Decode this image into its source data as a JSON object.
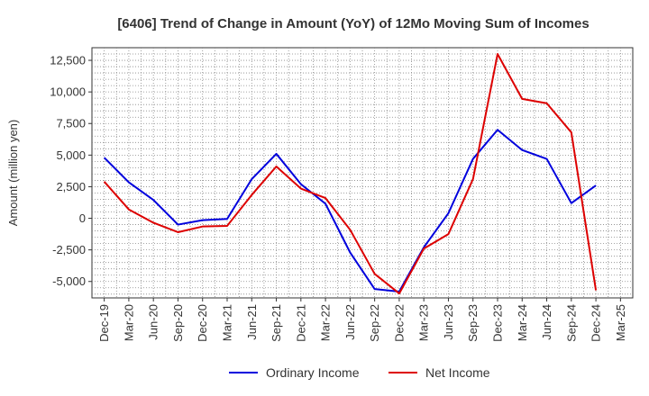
{
  "chart_data": {
    "type": "line",
    "title": "[6406]  Trend of Change in Amount (YoY) of 12Mo Moving Sum of Incomes",
    "xlabel": "",
    "ylabel": "Amount (million yen)",
    "categories": [
      "Dec-19",
      "Mar-20",
      "Jun-20",
      "Sep-20",
      "Dec-20",
      "Mar-21",
      "Jun-21",
      "Sep-21",
      "Dec-21",
      "Mar-22",
      "Jun-22",
      "Sep-22",
      "Dec-22",
      "Mar-23",
      "Jun-23",
      "Sep-23",
      "Dec-23",
      "Mar-24",
      "Jun-24",
      "Sep-24",
      "Dec-24",
      "Mar-25"
    ],
    "yticks": [
      -5000,
      -2500,
      0,
      2500,
      5000,
      7500,
      10000,
      12500
    ],
    "ytick_labels": [
      "-5,000",
      "-2,500",
      "0",
      "2,500",
      "5,000",
      "7,500",
      "10,000",
      "12,500"
    ],
    "ylim": [
      -6300,
      13500
    ],
    "grid": true,
    "legend_position": "bottom",
    "series": [
      {
        "name": "Ordinary Income",
        "color": "#0000dd",
        "values": [
          4800,
          2850,
          1450,
          -500,
          -150,
          -50,
          3100,
          5100,
          2700,
          1150,
          -2700,
          -5600,
          -5800,
          -2300,
          400,
          4700,
          7000,
          5400,
          4700,
          1200,
          2600,
          null
        ]
      },
      {
        "name": "Net Income",
        "color": "#dd0000",
        "values": [
          2900,
          700,
          -350,
          -1100,
          -650,
          -600,
          1850,
          4100,
          2350,
          1600,
          -900,
          -4400,
          -5950,
          -2400,
          -1250,
          3100,
          13000,
          9450,
          9100,
          6800,
          -5700,
          null
        ]
      }
    ]
  }
}
